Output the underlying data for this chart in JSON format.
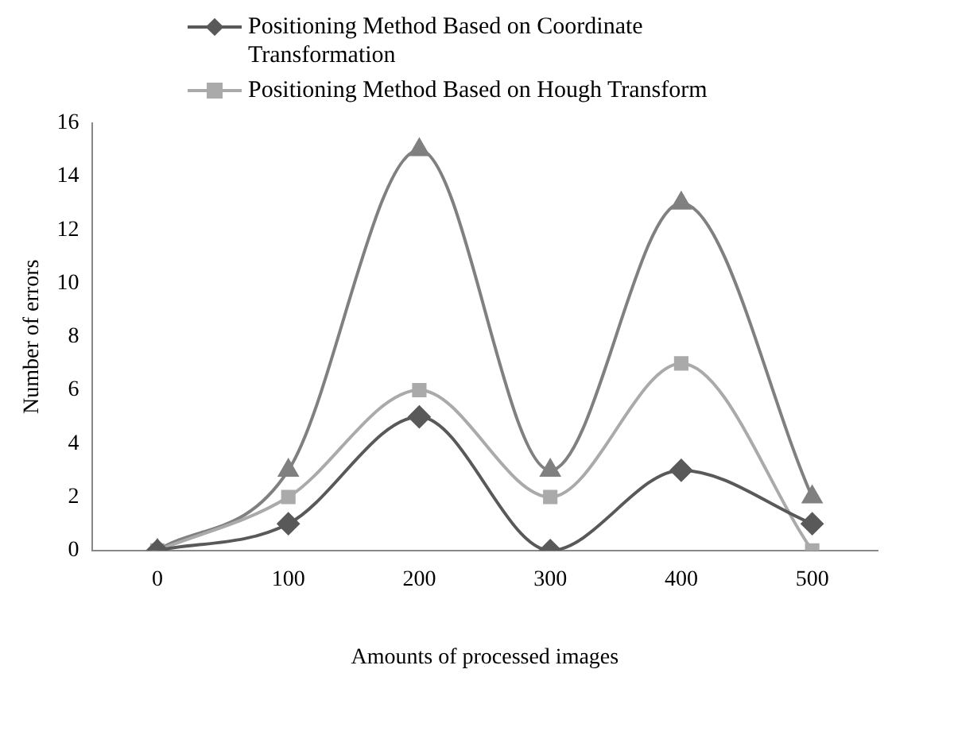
{
  "chart_data": {
    "type": "line",
    "xlabel": "Amounts of processed images",
    "ylabel": "Number of errors",
    "categories": [
      "0",
      "100",
      "200",
      "300",
      "400",
      "500"
    ],
    "series": [
      {
        "name": "Positioning Method Based on Coordinate Transformation",
        "color": "#595959",
        "marker": "diamond",
        "values": [
          0,
          1,
          5,
          0,
          3,
          1
        ]
      },
      {
        "name": "Positioning Method Based on Hough Transform",
        "color": "#aaaaaa",
        "marker": "square",
        "values": [
          0,
          2,
          6,
          2,
          7,
          0
        ]
      },
      {
        "color": "#808080",
        "marker": "triangle",
        "values": [
          0,
          3,
          15,
          3,
          13,
          2
        ]
      }
    ],
    "ylim": [
      0,
      16
    ],
    "yticks": [
      0,
      2,
      4,
      6,
      8,
      10,
      12,
      14,
      16
    ],
    "grid": false,
    "legend": "top"
  }
}
